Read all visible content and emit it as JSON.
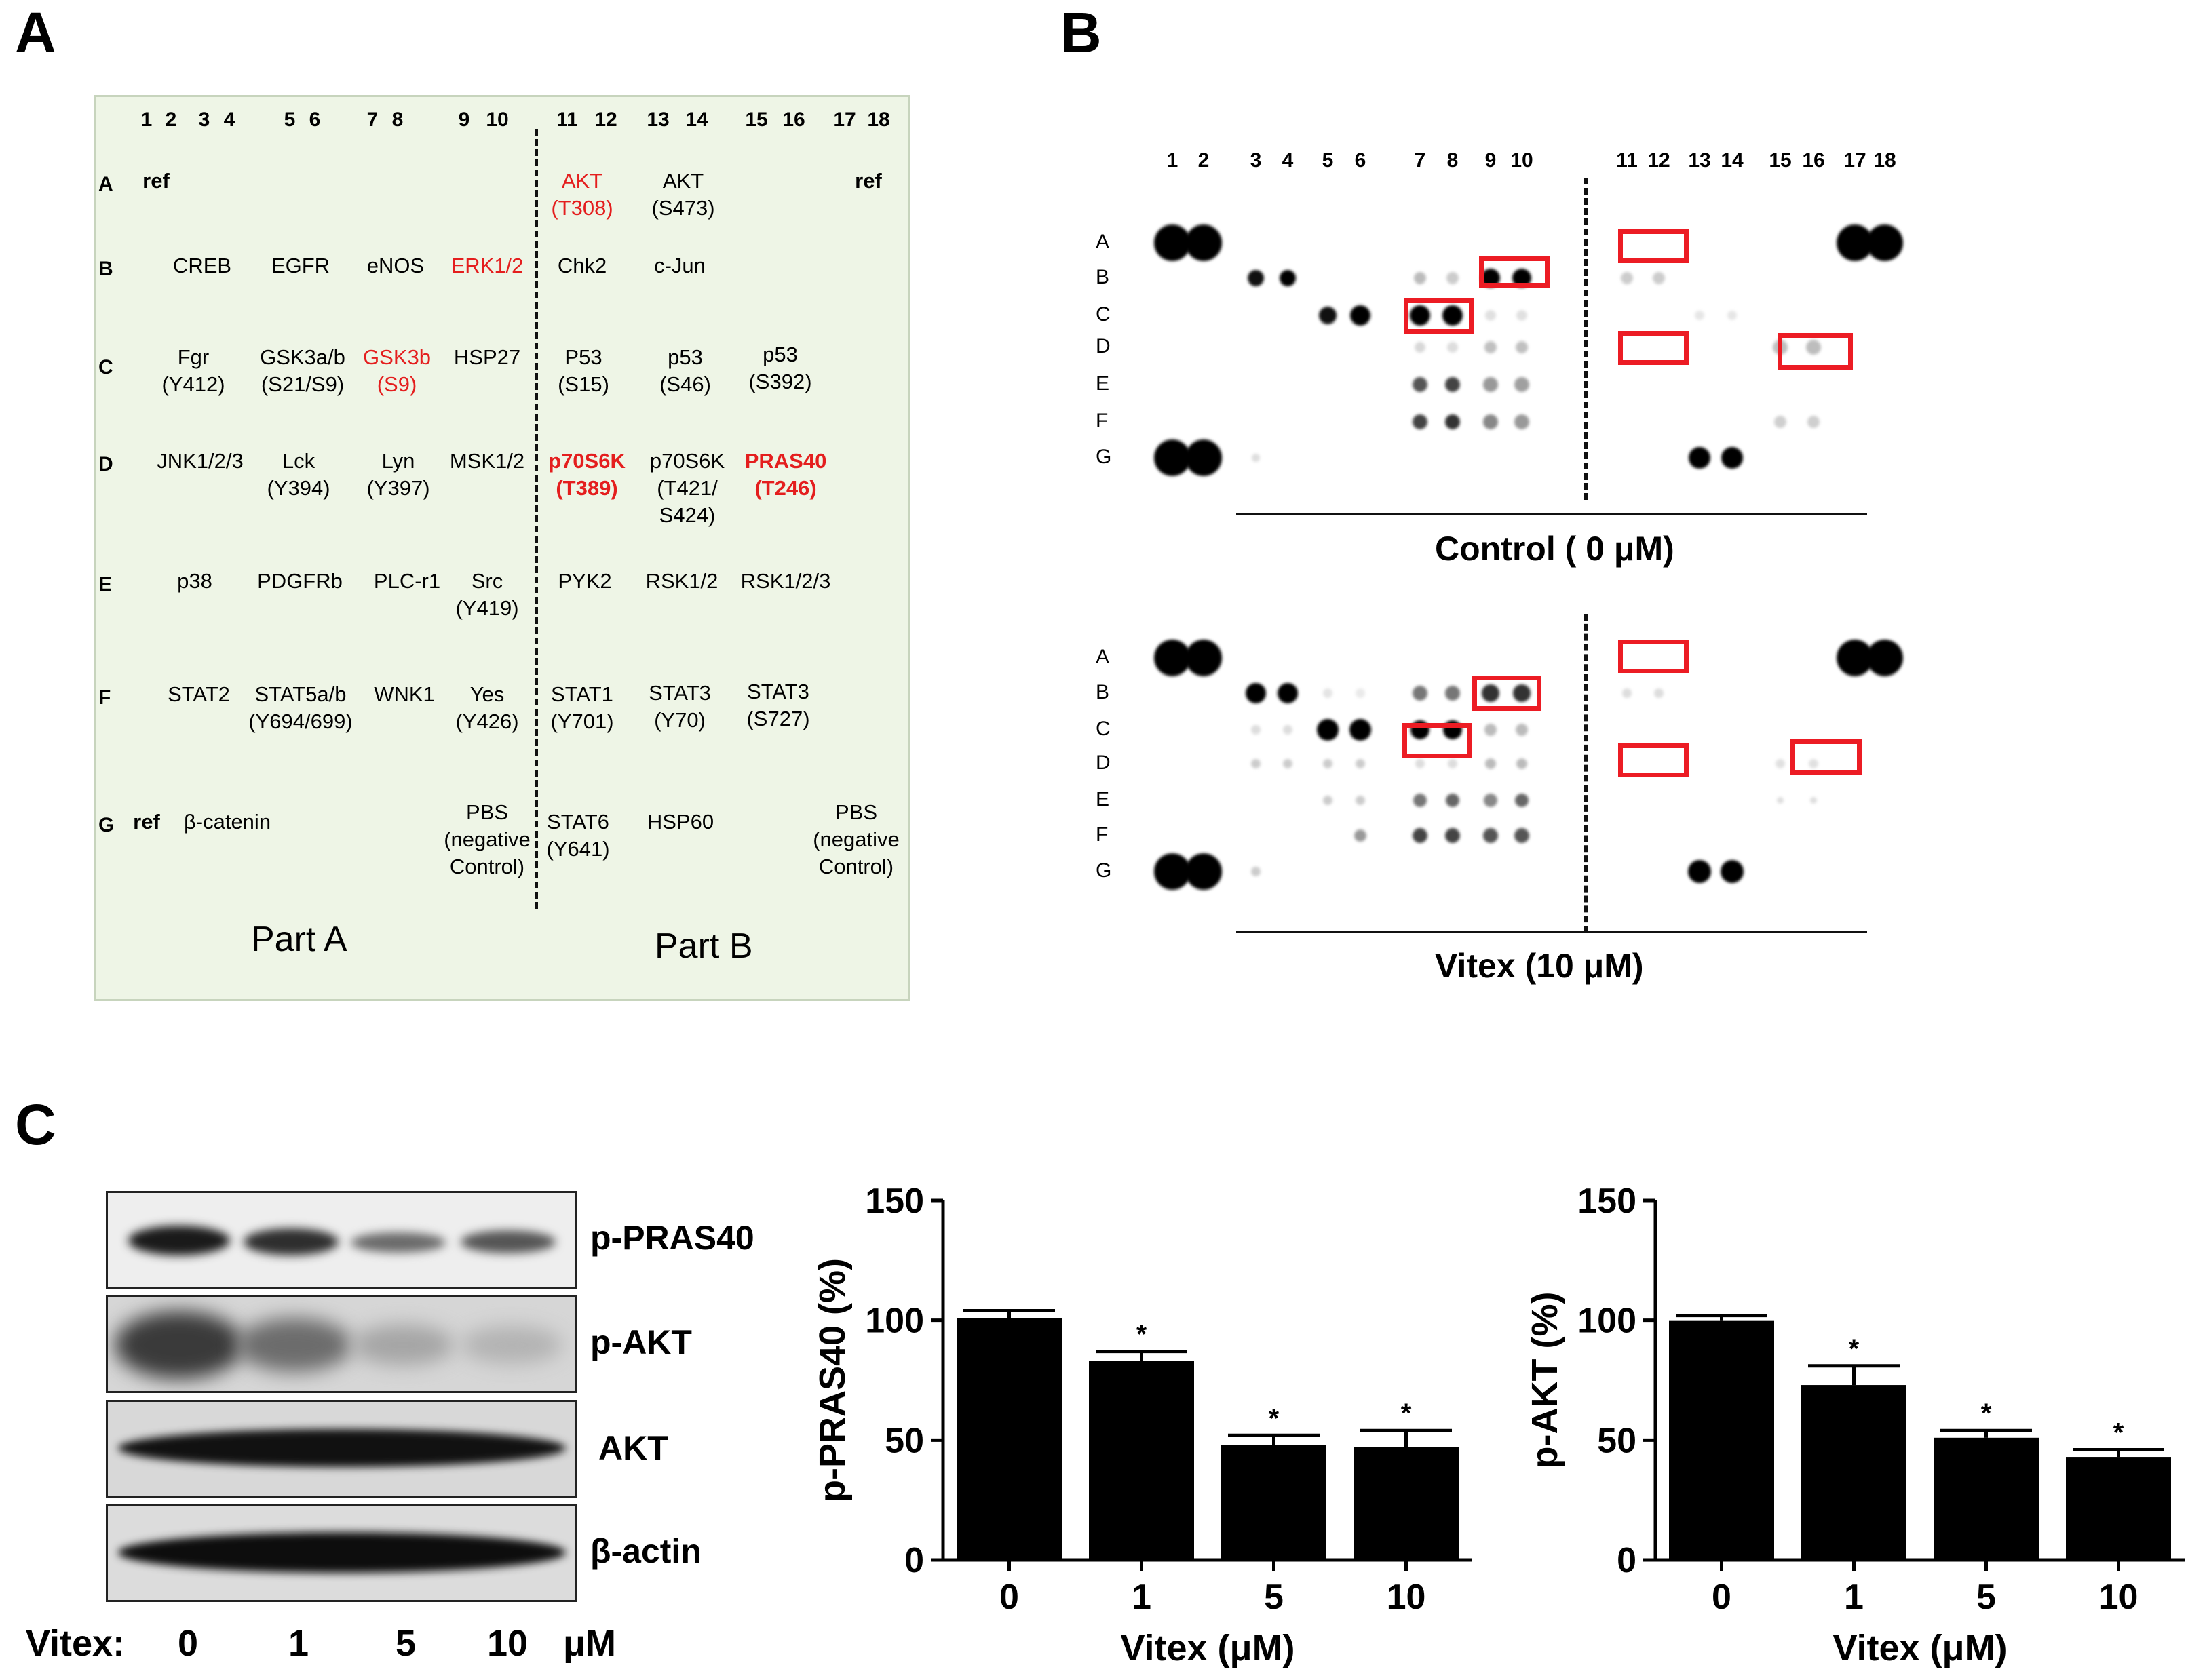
{
  "panels": {
    "a": "A",
    "b": "B",
    "c": "C"
  },
  "panel_a": {
    "col_numbers": [
      "1",
      "2",
      "3",
      "4",
      "5",
      "6",
      "7",
      "8",
      "9",
      "10",
      "11",
      "12",
      "13",
      "14",
      "15",
      "16",
      "17",
      "18"
    ],
    "row_letters": [
      "A",
      "B",
      "C",
      "D",
      "E",
      "F",
      "G"
    ],
    "rows": {
      "A": [
        "ref",
        "AKT\n(T308)",
        "AKT\n(S473)",
        "ref"
      ],
      "B": [
        "CREB",
        "EGFR",
        "eNOS",
        "ERK1/2",
        "Chk2",
        "c-Jun"
      ],
      "C": [
        "Fgr\n(Y412)",
        "GSK3a/b\n(S21/S9)",
        "GSK3b\n(S9)",
        "HSP27",
        "P53\n(S15)",
        "p53\n(S46)",
        "p53\n(S392)"
      ],
      "D": [
        "JNK1/2/3",
        "Lck\n(Y394)",
        "Lyn\n(Y397)",
        "MSK1/2",
        "p70S6K\n(T389)",
        "p70S6K\n(T421/\nS424)",
        "PRAS40\n(T246)"
      ],
      "E": [
        "p38",
        "PDGFRb",
        "PLC-r1",
        "Src\n(Y419)",
        "PYK2",
        "RSK1/2",
        "RSK1/2/3"
      ],
      "F": [
        "STAT2",
        "STAT5a/b\n(Y694/699)",
        "WNK1",
        "Yes\n(Y426)",
        "STAT1\n(Y701)",
        "STAT3\n(Y70)",
        "STAT3\n(S727)"
      ],
      "G": [
        "ref",
        "β-catenin",
        "PBS\n(negative\nControl)",
        "STAT6\n(Y641)",
        "HSP60",
        "PBS\n(negative\nControl)"
      ]
    },
    "part_a": "Part A",
    "part_b": "Part B"
  },
  "panel_b": {
    "col_numbers": [
      "1",
      "2",
      "3",
      "4",
      "5",
      "6",
      "7",
      "8",
      "9",
      "10",
      "11",
      "12",
      "13",
      "14",
      "15",
      "16",
      "17",
      "18"
    ],
    "row_letters": [
      "A",
      "B",
      "C",
      "D",
      "E",
      "F",
      "G"
    ],
    "control_label": "Control ( 0 μM)",
    "vitex_label": "Vitex (10 μM)"
  },
  "panel_c": {
    "blot_labels": [
      "p-PRAS40",
      "p-AKT",
      "AKT",
      "β-actin"
    ],
    "lane_axis_label": "Vitex:",
    "lanes": [
      "0",
      "1",
      "5",
      "10"
    ],
    "lane_unit": "μM"
  },
  "chart_data": [
    {
      "type": "bar",
      "categories": [
        "0",
        "1",
        "5",
        "10"
      ],
      "values": [
        101,
        83,
        48,
        47
      ],
      "errors": [
        3,
        4,
        4,
        7
      ],
      "significance": [
        "",
        "*",
        "*",
        "*"
      ],
      "title": "",
      "xlabel": "Vitex (μM)",
      "ylabel": "p-PRAS40 (%)",
      "ylim": [
        0,
        150
      ],
      "yticks": [
        "0",
        "50",
        "100",
        "150"
      ]
    },
    {
      "type": "bar",
      "categories": [
        "0",
        "1",
        "5",
        "10"
      ],
      "values": [
        100,
        73,
        51,
        43
      ],
      "errors": [
        2,
        8,
        3,
        3
      ],
      "significance": [
        "",
        "*",
        "*",
        "*"
      ],
      "title": "",
      "xlabel": "Vitex (μM)",
      "ylabel": "p-AKT (%)",
      "ylim": [
        0,
        150
      ],
      "yticks": [
        "0",
        "50",
        "100",
        "150"
      ]
    }
  ],
  "colors": {
    "panel_a_bg": "#eef5e6",
    "highlight": "#e41e1e",
    "bar": "#000000"
  }
}
